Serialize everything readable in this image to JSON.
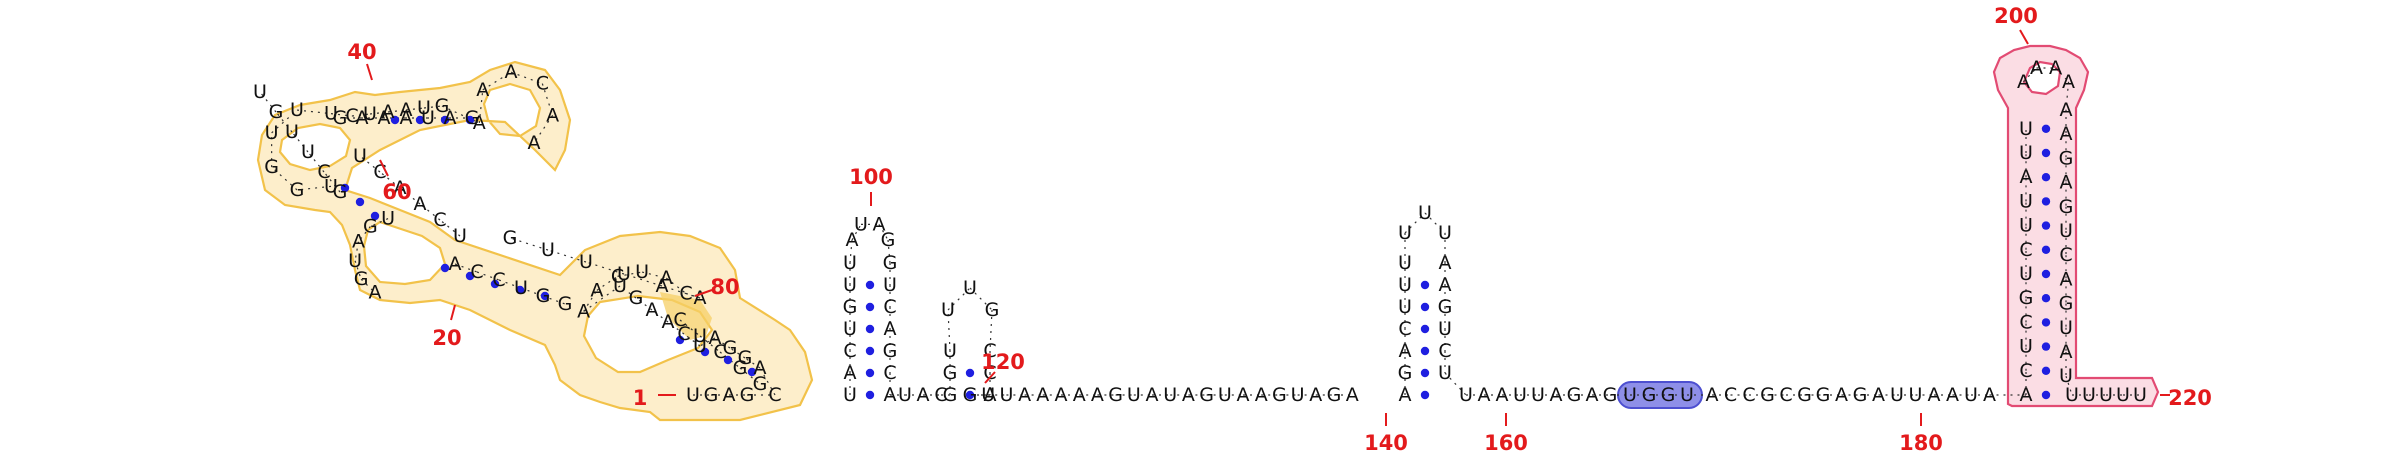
{
  "colors": {
    "domain_yellow_fill": "#fdeecb",
    "domain_yellow_stroke": "#f2c24a",
    "domain_yellow_strong": "#f5cf66",
    "domain_pink_fill": "#fbdde4",
    "domain_pink_stroke": "#e24b73",
    "motif_fill": "#8e8fe8",
    "motif_stroke": "#4d4fd0",
    "base_pair_dot": "#1f1fe0",
    "position_label": "#e31a1c",
    "nucleotide_text": "#111111"
  },
  "sequence": "UGAGCAGGAUCAAGUAACUACAAUUUGUCAACUUGAUGAGCUUGUUGGUUUCUAAUGAAACAAGAUAAAGACCUGGCUCGGAGAUACUUGUCAGACAUGGUAUUGCUUGUCUCCCAUCUGUUAUAGACUGCCUUAAUAAAAAGUAUAGUAAGUAGAUUCGACGAAUUUAAUAAAUUAGAGUGGUACCGCGGAGAUUAAUAUUCUCGUCUUAUAAAAGAGUCAGUAUUGUUUUU",
  "sequence_display": {
    "stem_loop_5p_domain": "UGAGCAGGAUCAAGUAACUACAAUUUGUCAACUUGAUGAGCUUGUUGGUUUCUAAUGAAACAAGAUAAAGACCUGGCUCGGAG",
    "hairpin_96_108": "UCUGUUAUAGACUG",
    "hairpin_112_122": "UUGUUUACC",
    "linker_124_143": "GUUAAAAAGUAUAGUAAGUAGA",
    "hairpin_144_157": "GACUUUUACGUCAU",
    "linker_to_motif": "UAAUUAGAG",
    "motif_label": "UGGU",
    "linker_after_motif": "ACCGCGGAGAUUAAUA",
    "terminator_hairpin": "UCUCGUCUUAUAAAAGAGUCAGUA",
    "poly_u_tail": "UUUUU"
  },
  "position_labels": [
    "1",
    "20",
    "40",
    "60",
    "80",
    "100",
    "120",
    "140",
    "160",
    "180",
    "200",
    "220"
  ]
}
